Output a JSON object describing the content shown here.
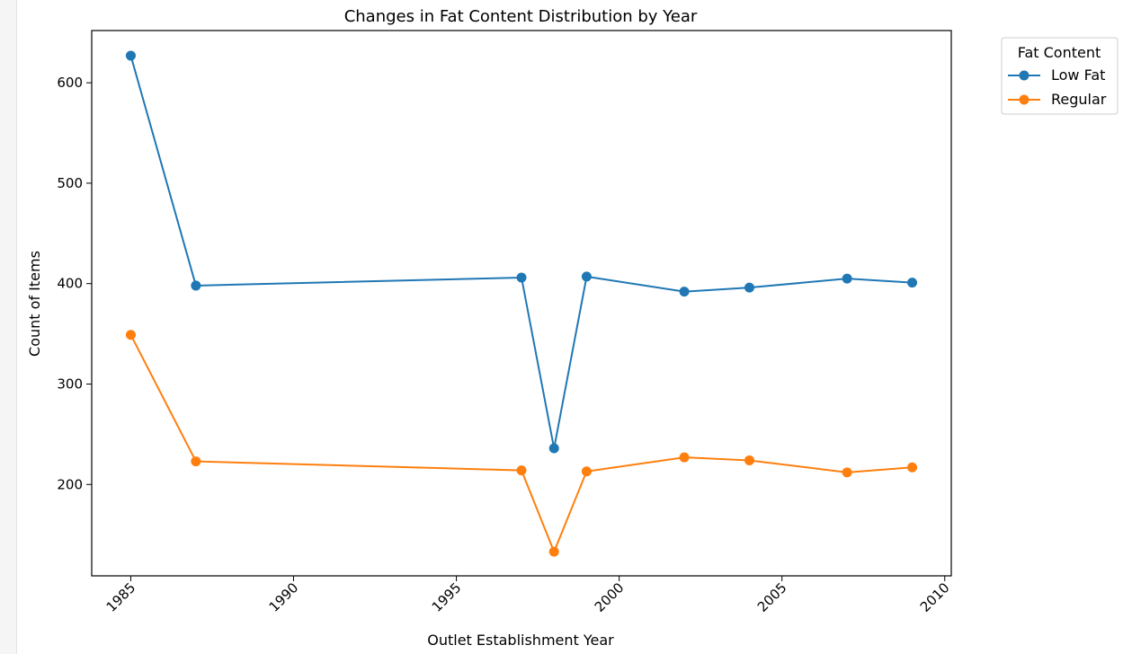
{
  "chart_data": {
    "type": "line",
    "title": "Changes in Fat Content Distribution by Year",
    "xlabel": "Outlet Establishment Year",
    "ylabel": "Count of Items",
    "x": [
      1985,
      1987,
      1997,
      1998,
      1999,
      2002,
      2004,
      2007,
      2009
    ],
    "xlim": [
      1983.8,
      2010.2
    ],
    "ylim": [
      109,
      652
    ],
    "xticks": [
      1985,
      1990,
      1995,
      2000,
      2005,
      2010
    ],
    "yticks": [
      200,
      300,
      400,
      500,
      600
    ],
    "grid": false,
    "legend": {
      "title": "Fat Content",
      "placement": "outside-top-right"
    },
    "series": [
      {
        "name": "Low Fat",
        "color": "#1f77b4",
        "values": [
          627,
          398,
          406,
          236,
          407,
          392,
          396,
          405,
          401
        ]
      },
      {
        "name": "Regular",
        "color": "#ff7f0e",
        "values": [
          349,
          223,
          214,
          133,
          213,
          227,
          224,
          212,
          217
        ]
      }
    ]
  }
}
